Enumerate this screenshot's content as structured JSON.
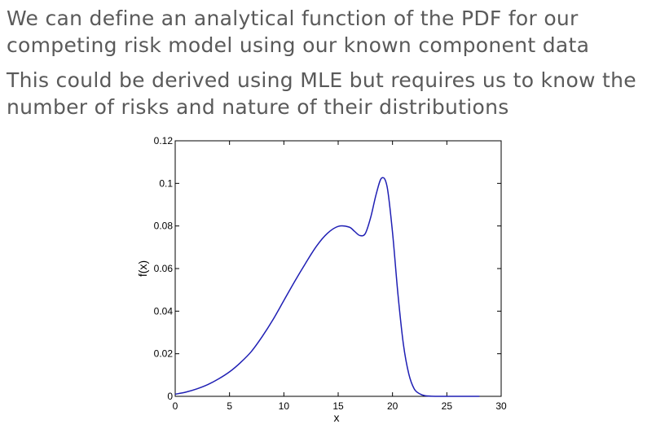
{
  "slide": {
    "bullets": [
      {
        "lines": [
          "We can define an analytical function of the PDF for our",
          "competing risk model using our known component data"
        ]
      },
      {
        "lines": [
          "This could be derived using MLE but requires us to know the",
          "number of risks and nature of their distributions"
        ]
      }
    ]
  },
  "chart_data": {
    "type": "line",
    "title": "",
    "xlabel": "x",
    "ylabel": "f(x)",
    "xlim": [
      0,
      30
    ],
    "ylim": [
      0,
      0.12
    ],
    "xticks": [
      0,
      5,
      10,
      15,
      20,
      25,
      30
    ],
    "xtick_labels": [
      "0",
      "5",
      "10",
      "15",
      "20",
      "25",
      "30"
    ],
    "yticks": [
      0,
      0.02,
      0.04,
      0.06,
      0.08,
      0.1,
      0.12
    ],
    "ytick_labels": [
      "0",
      "0.02",
      "0.04",
      "0.06",
      "0.08",
      "0.1",
      "0.12"
    ],
    "grid": false,
    "line_color": "#1f1fb4",
    "series": [
      {
        "x": [
          0,
          1,
          2,
          3,
          4,
          5,
          6,
          7,
          8,
          9,
          10,
          11,
          12,
          13,
          14,
          15,
          16,
          16.5,
          17,
          17.5,
          18,
          18.5,
          19,
          19.5,
          20,
          20.5,
          21,
          21.5,
          22,
          22.5,
          23,
          24,
          25,
          26,
          27,
          28
        ],
        "y": [
          0.001,
          0.002,
          0.0035,
          0.0055,
          0.0082,
          0.0115,
          0.0158,
          0.021,
          0.028,
          0.036,
          0.045,
          0.054,
          0.0625,
          0.0705,
          0.0765,
          0.0798,
          0.0795,
          0.0775,
          0.0755,
          0.0765,
          0.0842,
          0.095,
          0.1025,
          0.0985,
          0.077,
          0.048,
          0.0245,
          0.0105,
          0.0035,
          0.0012,
          0.0003,
          0.0,
          0.0,
          0.0,
          0.0,
          0.0
        ]
      }
    ]
  }
}
